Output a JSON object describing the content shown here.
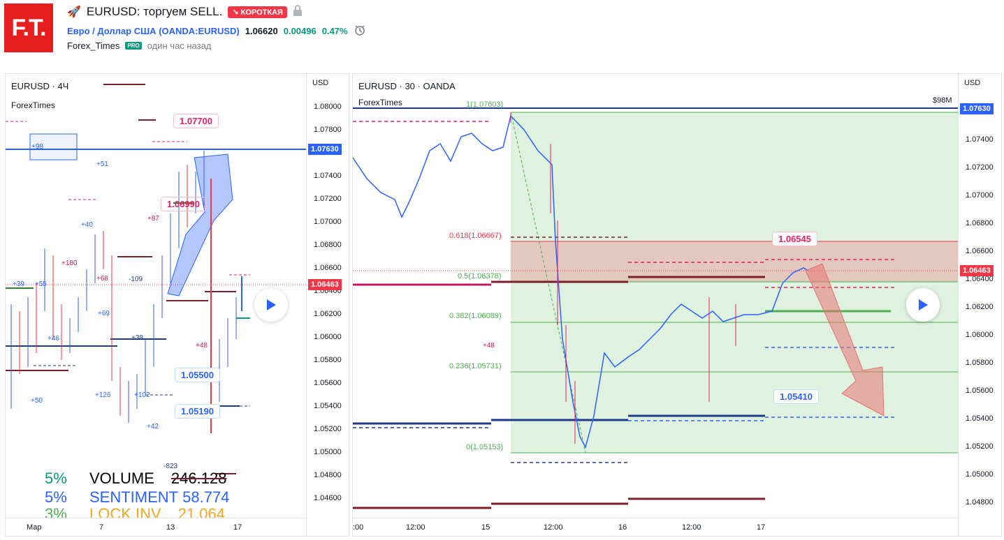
{
  "header": {
    "logo_text": "F.T.",
    "title": "EURUSD: торгуем SELL.",
    "badge": "↘ КОРОТКАЯ",
    "symbol_name": "Евро / Доллар США",
    "symbol_ticker": "(OANDA:EURUSD)",
    "price": "1.06620",
    "change": "0.00496",
    "change_pct": "0.47%",
    "author": "Forex_Times",
    "author_badge": "PRO",
    "time_ago": "один час назад",
    "colors": {
      "brand": "#e61e1e",
      "accent": "#2962ff",
      "positive": "#089981",
      "short": "#f23645"
    }
  },
  "left_chart": {
    "title": "EURUSD · 4Ч",
    "subtitle": "ForexTimes",
    "currency": "USD",
    "ticks": [
      "1.08000",
      "1.07800",
      "1.07600",
      "1.07400",
      "1.07200",
      "1.07000",
      "1.06800",
      "1.06600",
      "1.06400",
      "1.06200",
      "1.06000",
      "1.05800",
      "1.05600",
      "1.05400",
      "1.05200",
      "1.05000",
      "1.04800",
      "1.04600"
    ],
    "x_labels": [
      "Мар",
      "7",
      "13",
      "17"
    ],
    "price_tags": {
      "level": "1.07630",
      "current": "1.06463"
    },
    "callouts": [
      "1.07700",
      "1.06990",
      "1.05500",
      "1.05190"
    ],
    "annotations": [
      "+98",
      "+51",
      "+40",
      "+39",
      "+55",
      "+180",
      "+68",
      "-109",
      "+46",
      "+69",
      "+38",
      "+126",
      "+102",
      "+50",
      "+42",
      "+48",
      "-823",
      "+87"
    ],
    "stats": [
      {
        "pct": "5%",
        "label": "VOLUME",
        "value": "246.128"
      },
      {
        "pct": "5%",
        "label": "SENTIMENT",
        "value": "58.774"
      },
      {
        "pct": "3%",
        "label": "LOCK INV",
        "value": "21.064"
      }
    ]
  },
  "right_chart": {
    "title": "EURUSD · 30 · OANDA",
    "subtitle": "ForexTimes",
    "currency": "USD",
    "volume_label": "$98M",
    "ticks": [
      "1.07400",
      "1.07200",
      "1.07000",
      "1.06800",
      "1.06600",
      "1.06400",
      "1.06200",
      "1.06000",
      "1.05800",
      "1.05600",
      "1.05400",
      "1.05200",
      "1.05000",
      "1.04800"
    ],
    "x_labels": [
      ":00",
      "12:00",
      "15",
      "12:00",
      "16",
      "12:00",
      "17"
    ],
    "price_tags": {
      "level": "1.07630",
      "current": "1.06463"
    },
    "fib": [
      "1(1.07603)",
      "0.618(1.06667)",
      "0.5(1.06378)",
      "0.382(1.06089)",
      "0.236(1.05731)",
      "0(1.05153)"
    ],
    "callouts": [
      "1.06545",
      "1.05410"
    ],
    "annotations": [
      "+48"
    ]
  }
}
